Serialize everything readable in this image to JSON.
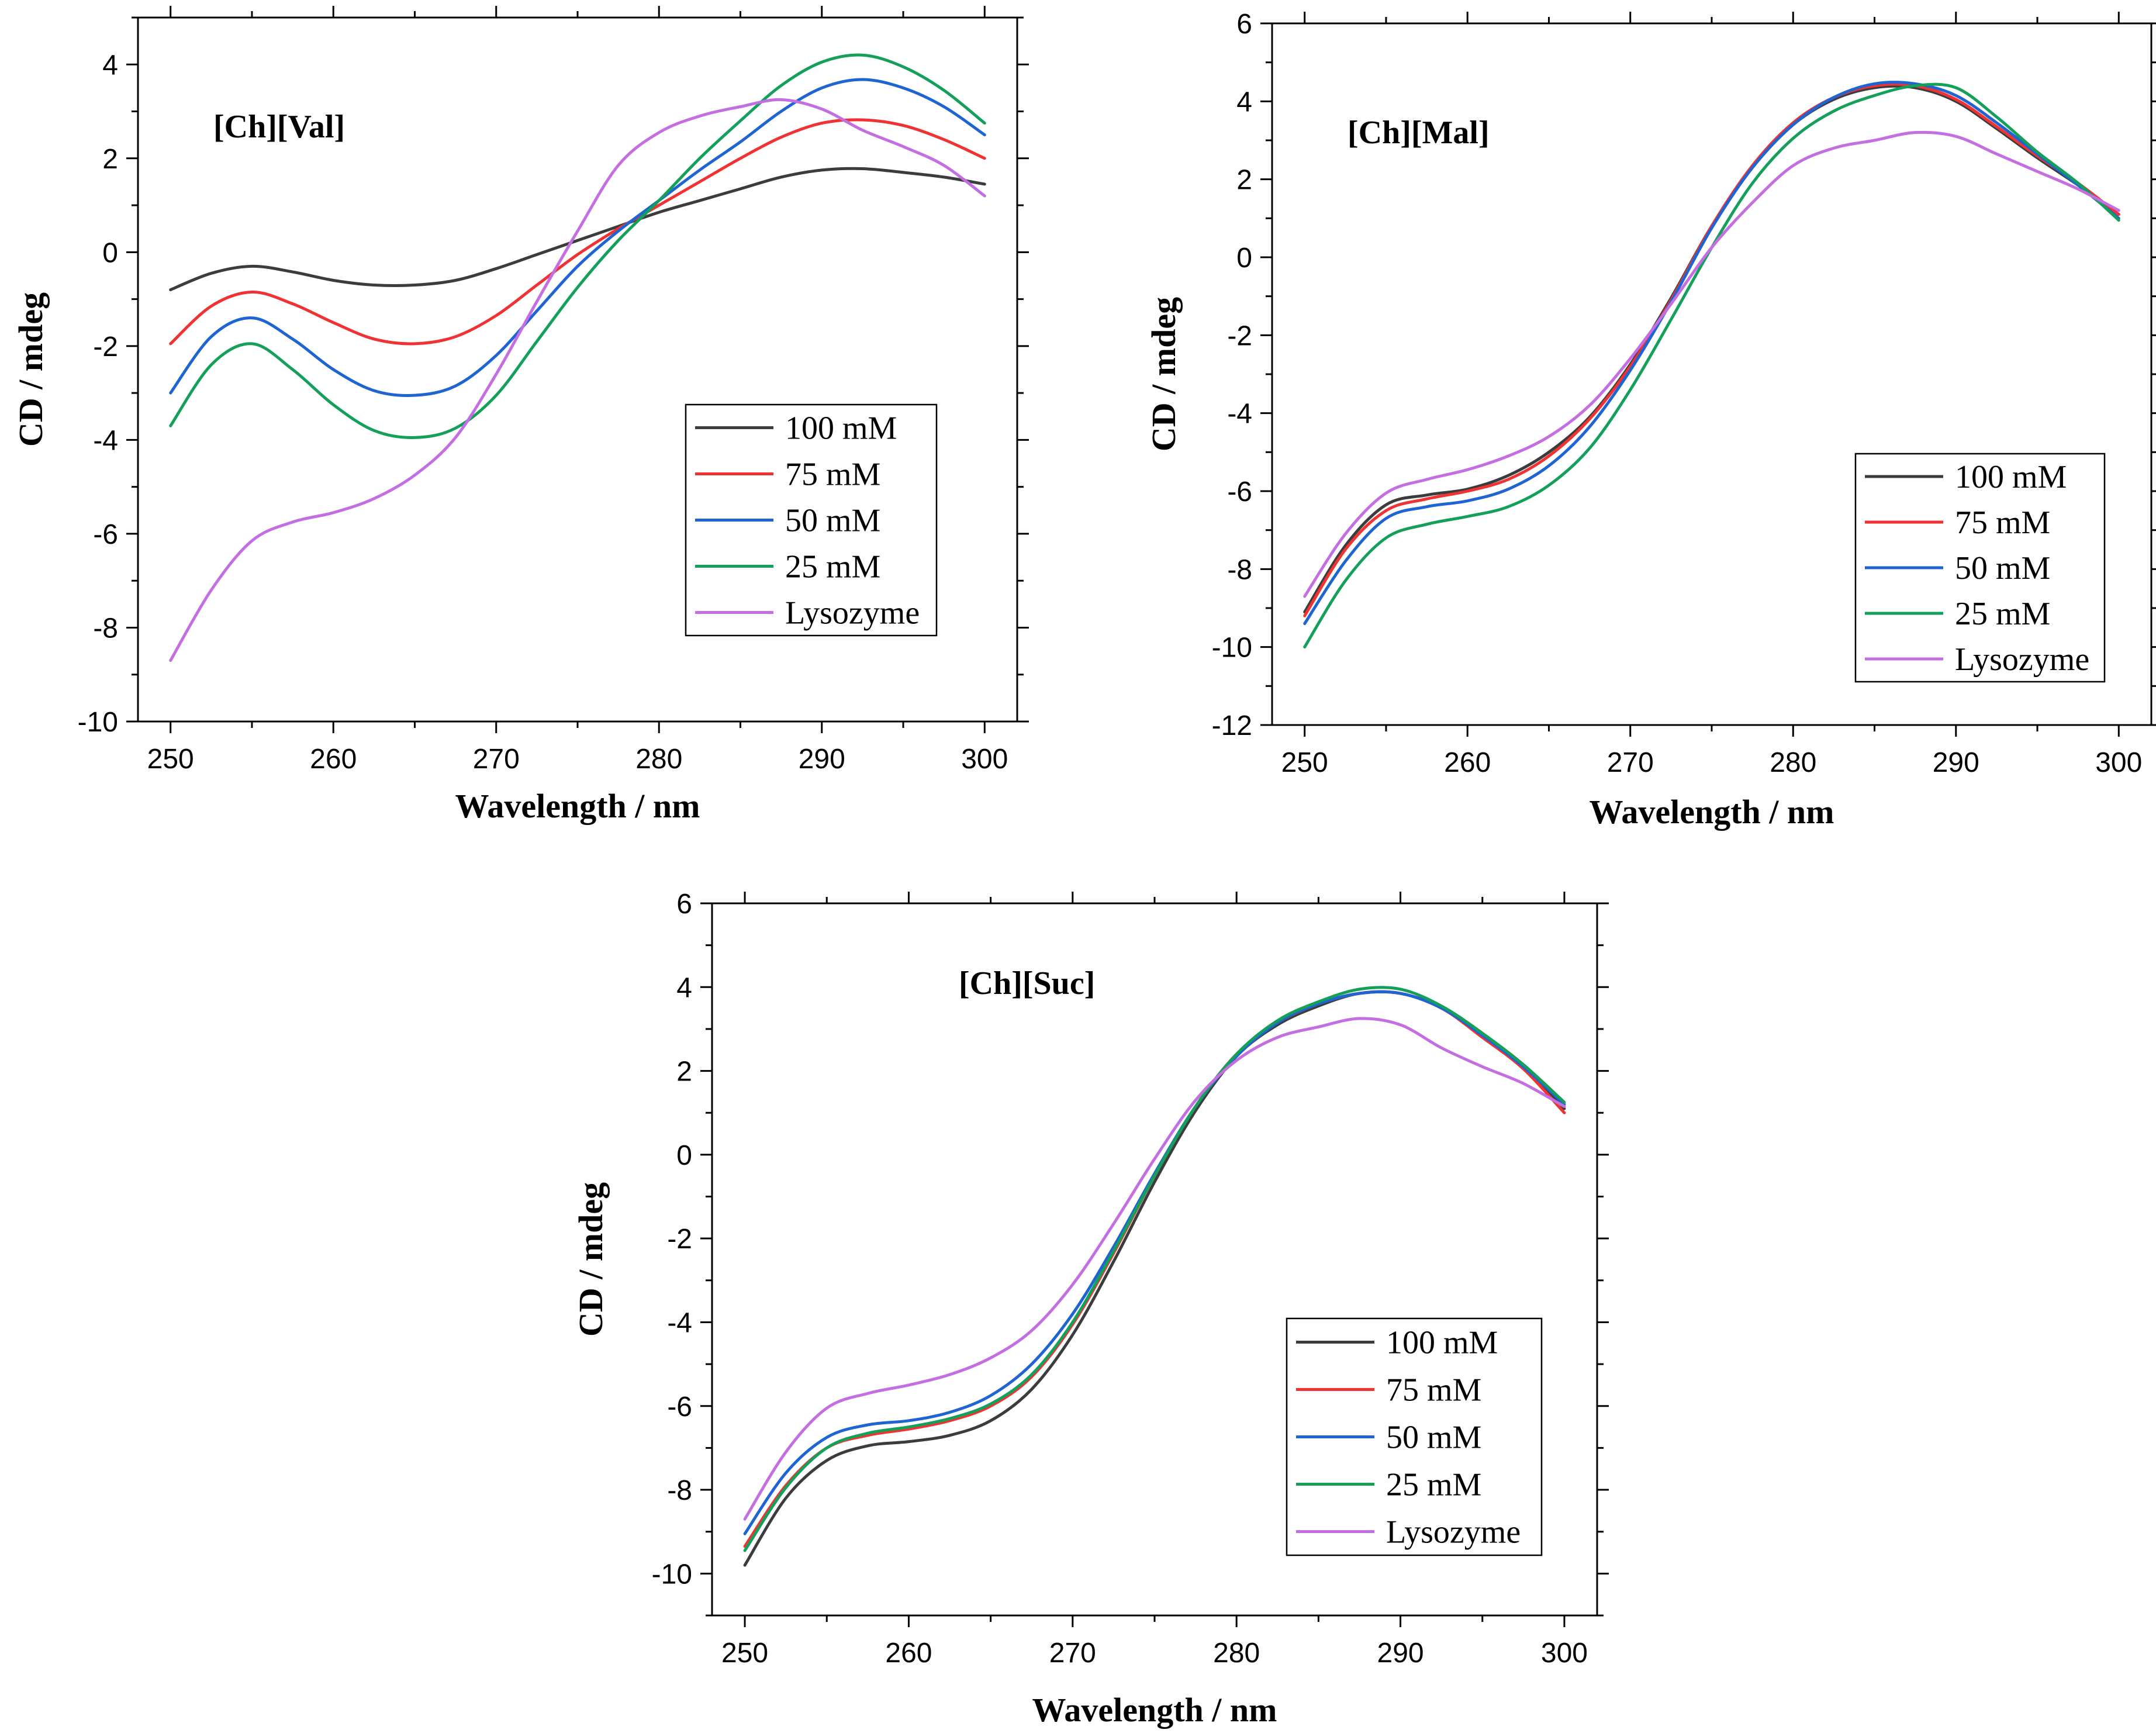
{
  "figure": {
    "panels_count": 3
  },
  "chart_data": [
    {
      "type": "line",
      "title": "[Ch][Val]",
      "xlabel": "Wavelength / nm",
      "ylabel": "CD / mdeg",
      "xlim": [
        248,
        302
      ],
      "ylim": [
        -10,
        5
      ],
      "xticks": [
        250,
        260,
        270,
        280,
        290,
        300
      ],
      "xtick_labels": [
        "250",
        "260",
        "270",
        "280",
        "290",
        "300"
      ],
      "yticks": [
        -10,
        -8,
        -6,
        -4,
        -2,
        0,
        2,
        4
      ],
      "ytick_labels": [
        "-10",
        "-8",
        "-6",
        "-4",
        "-2",
        "0",
        "2",
        "4"
      ],
      "legend_position": "center-right",
      "x": [
        250,
        252.5,
        255,
        257.5,
        260,
        262.5,
        265,
        267.5,
        270,
        272.5,
        275,
        277.5,
        280,
        282.5,
        285,
        287.5,
        290,
        292.5,
        295,
        297.5,
        300
      ],
      "series": [
        {
          "name": "100 mM",
          "color": "#3c3c3c",
          "values": [
            -0.8,
            -0.45,
            -0.3,
            -0.42,
            -0.6,
            -0.7,
            -0.7,
            -0.6,
            -0.35,
            -0.05,
            0.25,
            0.55,
            0.85,
            1.1,
            1.35,
            1.6,
            1.75,
            1.78,
            1.7,
            1.6,
            1.45
          ]
        },
        {
          "name": "75 mM",
          "color": "#f03232",
          "values": [
            -1.95,
            -1.15,
            -0.85,
            -1.1,
            -1.5,
            -1.85,
            -1.95,
            -1.8,
            -1.35,
            -0.7,
            -0.05,
            0.5,
            1.0,
            1.5,
            2.0,
            2.45,
            2.75,
            2.82,
            2.7,
            2.4,
            2.0
          ]
        },
        {
          "name": "50 mM",
          "color": "#1e64d2",
          "values": [
            -3.0,
            -1.8,
            -1.4,
            -1.85,
            -2.5,
            -2.95,
            -3.05,
            -2.85,
            -2.2,
            -1.25,
            -0.3,
            0.45,
            1.1,
            1.75,
            2.35,
            3.0,
            3.5,
            3.68,
            3.5,
            3.1,
            2.5
          ]
        },
        {
          "name": "25 mM",
          "color": "#14a05a",
          "values": [
            -3.7,
            -2.4,
            -1.95,
            -2.5,
            -3.25,
            -3.8,
            -3.95,
            -3.75,
            -3.05,
            -1.9,
            -0.75,
            0.25,
            1.1,
            2.0,
            2.8,
            3.55,
            4.05,
            4.2,
            3.95,
            3.45,
            2.75
          ]
        },
        {
          "name": "Lysozyme",
          "color": "#c36ee1",
          "values": [
            -8.7,
            -7.2,
            -6.15,
            -5.75,
            -5.55,
            -5.25,
            -4.75,
            -3.95,
            -2.6,
            -1.05,
            0.45,
            1.85,
            2.55,
            2.9,
            3.1,
            3.25,
            3.05,
            2.6,
            2.25,
            1.85,
            1.2
          ]
        }
      ]
    },
    {
      "type": "line",
      "title": "[Ch][Mal]",
      "xlabel": "Wavelength / nm",
      "ylabel": "CD / mdeg",
      "xlim": [
        248,
        302
      ],
      "ylim": [
        -12,
        6
      ],
      "xticks": [
        250,
        260,
        270,
        280,
        290,
        300
      ],
      "xtick_labels": [
        "250",
        "260",
        "270",
        "280",
        "290",
        "300"
      ],
      "yticks": [
        -12,
        -10,
        -8,
        -6,
        -4,
        -2,
        0,
        2,
        4,
        6
      ],
      "ytick_labels": [
        "-12",
        "-10",
        "-8",
        "-6",
        "-4",
        "-2",
        "0",
        "2",
        "4",
        "6"
      ],
      "legend_position": "center-right",
      "x": [
        250,
        252.5,
        255,
        257.5,
        260,
        262.5,
        265,
        267.5,
        270,
        272.5,
        275,
        277.5,
        280,
        282.5,
        285,
        287.5,
        290,
        292.5,
        295,
        297.5,
        300
      ],
      "series": [
        {
          "name": "100 mM",
          "color": "#3c3c3c",
          "values": [
            -9.1,
            -7.4,
            -6.35,
            -6.1,
            -5.95,
            -5.6,
            -5.0,
            -4.1,
            -2.75,
            -1.05,
            0.8,
            2.3,
            3.4,
            4.05,
            4.35,
            4.35,
            4.0,
            3.3,
            2.55,
            1.85,
            1.1
          ]
        },
        {
          "name": "75 mM",
          "color": "#f03232",
          "values": [
            -9.2,
            -7.5,
            -6.5,
            -6.2,
            -6.0,
            -5.7,
            -5.1,
            -4.15,
            -2.8,
            -1.1,
            0.8,
            2.35,
            3.45,
            4.1,
            4.4,
            4.4,
            4.05,
            3.35,
            2.6,
            1.9,
            1.1
          ]
        },
        {
          "name": "50 mM",
          "color": "#1e64d2",
          "values": [
            -9.4,
            -7.8,
            -6.7,
            -6.4,
            -6.25,
            -5.95,
            -5.35,
            -4.35,
            -2.9,
            -1.15,
            0.75,
            2.3,
            3.4,
            4.1,
            4.45,
            4.45,
            4.15,
            3.45,
            2.65,
            1.85,
            1.0
          ]
        },
        {
          "name": "25 mM",
          "color": "#14a05a",
          "values": [
            -10.0,
            -8.3,
            -7.2,
            -6.85,
            -6.65,
            -6.4,
            -5.85,
            -4.9,
            -3.4,
            -1.6,
            0.25,
            1.9,
            3.05,
            3.75,
            4.15,
            4.4,
            4.35,
            3.6,
            2.7,
            1.9,
            0.95
          ]
        },
        {
          "name": "Lysozyme",
          "color": "#c36ee1",
          "values": [
            -8.7,
            -7.1,
            -6.05,
            -5.7,
            -5.45,
            -5.1,
            -4.6,
            -3.8,
            -2.6,
            -1.2,
            0.25,
            1.4,
            2.35,
            2.8,
            3.0,
            3.2,
            3.1,
            2.65,
            2.2,
            1.75,
            1.2
          ]
        }
      ]
    },
    {
      "type": "line",
      "title": "[Ch][Suc]",
      "xlabel": "Wavelength / nm",
      "ylabel": "CD / mdeg",
      "xlim": [
        248,
        302
      ],
      "ylim": [
        -11,
        6
      ],
      "xticks": [
        250,
        260,
        270,
        280,
        290,
        300
      ],
      "xtick_labels": [
        "250",
        "260",
        "270",
        "280",
        "290",
        "300"
      ],
      "yticks": [
        -10,
        -8,
        -6,
        -4,
        -2,
        0,
        2,
        4,
        6
      ],
      "ytick_labels": [
        "-10",
        "-8",
        "-6",
        "-4",
        "-2",
        "0",
        "2",
        "4",
        "6"
      ],
      "legend_position": "bottom-right",
      "x": [
        250,
        252.5,
        255,
        257.5,
        260,
        262.5,
        265,
        267.5,
        270,
        272.5,
        275,
        277.5,
        280,
        282.5,
        285,
        287.5,
        290,
        292.5,
        295,
        297.5,
        300
      ],
      "series": [
        {
          "name": "100 mM",
          "color": "#3c3c3c",
          "values": [
            -9.8,
            -8.2,
            -7.3,
            -6.95,
            -6.85,
            -6.7,
            -6.35,
            -5.6,
            -4.3,
            -2.55,
            -0.65,
            1.05,
            2.35,
            3.1,
            3.55,
            3.85,
            3.85,
            3.5,
            2.85,
            2.1,
            1.1
          ]
        },
        {
          "name": "75 mM",
          "color": "#f03232",
          "values": [
            -9.35,
            -7.9,
            -7.0,
            -6.7,
            -6.55,
            -6.35,
            -6.0,
            -5.3,
            -4.05,
            -2.35,
            -0.5,
            1.15,
            2.4,
            3.15,
            3.6,
            3.85,
            3.85,
            3.5,
            2.8,
            2.05,
            1.0
          ]
        },
        {
          "name": "50 mM",
          "color": "#1e64d2",
          "values": [
            -9.05,
            -7.6,
            -6.75,
            -6.45,
            -6.35,
            -6.15,
            -5.75,
            -5.0,
            -3.8,
            -2.2,
            -0.45,
            1.15,
            2.35,
            3.15,
            3.6,
            3.85,
            3.85,
            3.5,
            2.85,
            2.1,
            1.2
          ]
        },
        {
          "name": "25 mM",
          "color": "#14a05a",
          "values": [
            -9.45,
            -7.95,
            -7.0,
            -6.65,
            -6.5,
            -6.3,
            -5.95,
            -5.25,
            -4.0,
            -2.3,
            -0.5,
            1.15,
            2.4,
            3.2,
            3.65,
            3.95,
            3.95,
            3.55,
            2.9,
            2.15,
            1.25
          ]
        },
        {
          "name": "Lysozyme",
          "color": "#c36ee1",
          "values": [
            -8.7,
            -7.1,
            -6.05,
            -5.7,
            -5.5,
            -5.25,
            -4.85,
            -4.2,
            -3.1,
            -1.65,
            -0.1,
            1.3,
            2.25,
            2.8,
            3.05,
            3.25,
            3.1,
            2.55,
            2.1,
            1.7,
            1.15
          ]
        }
      ]
    }
  ]
}
